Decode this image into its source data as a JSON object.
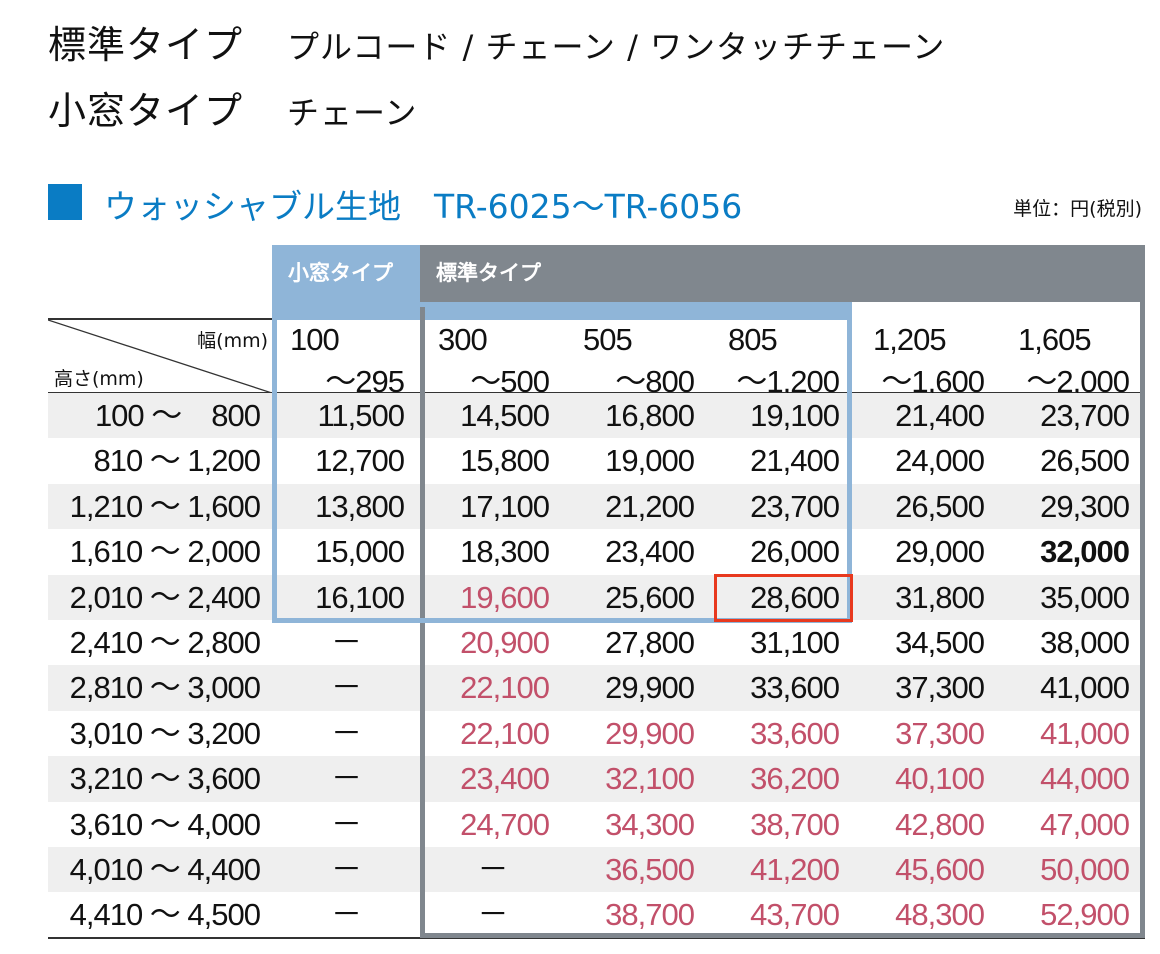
{
  "title_lines": [
    {
      "type": "標準タイプ",
      "operation": "プルコード / チェーン / ワンタッチチェーン"
    },
    {
      "type": "小窓タイプ",
      "operation": "チェーン"
    }
  ],
  "section": {
    "heading": "ウォッシャブル生地　TR-6025～TR-6056",
    "unit": "単位：円(税別)"
  },
  "colors": {
    "accent_blue": "#0a7cc4",
    "small_window_blue": "#8fb5d8",
    "standard_gray": "#80878e",
    "red_price": "#c2506a",
    "highlight_red": "#e8391e",
    "row_stripe": "#efefef"
  },
  "table": {
    "group_headers": {
      "small_window": "小窓タイプ",
      "standard": "標準タイプ"
    },
    "corner": {
      "width_label": "幅(mm)",
      "height_label": "高さ(mm)"
    },
    "width_columns": [
      {
        "from": "100",
        "to": "～295"
      },
      {
        "from": "300",
        "to": "～500"
      },
      {
        "from": "505",
        "to": "～800"
      },
      {
        "from": "805",
        "to": "～1,200"
      },
      {
        "from": "1,205",
        "to": "～1,600"
      },
      {
        "from": "1,605",
        "to": "～2,000"
      }
    ],
    "rows": [
      {
        "height": "100 ～　800",
        "values": [
          "11,500",
          "14,500",
          "16,800",
          "19,100",
          "21,400",
          "23,700"
        ],
        "red": []
      },
      {
        "height": "810 ～ 1,200",
        "values": [
          "12,700",
          "15,800",
          "19,000",
          "21,400",
          "24,000",
          "26,500"
        ],
        "red": []
      },
      {
        "height": "1,210 ～ 1,600",
        "values": [
          "13,800",
          "17,100",
          "21,200",
          "23,700",
          "26,500",
          "29,300"
        ],
        "red": []
      },
      {
        "height": "1,610 ～ 2,000",
        "values": [
          "15,000",
          "18,300",
          "23,400",
          "26,000",
          "29,000",
          "32,000"
        ],
        "red": [],
        "bold": [
          5
        ]
      },
      {
        "height": "2,010 ～ 2,400",
        "values": [
          "16,100",
          "19,600",
          "25,600",
          "28,600",
          "31,800",
          "35,000"
        ],
        "red": [
          1
        ],
        "highlighted": [
          3
        ]
      },
      {
        "height": "2,410 ～ 2,800",
        "values": [
          "－",
          "20,900",
          "27,800",
          "31,100",
          "34,500",
          "38,000"
        ],
        "red": [
          1
        ]
      },
      {
        "height": "2,810 ～ 3,000",
        "values": [
          "－",
          "22,100",
          "29,900",
          "33,600",
          "37,300",
          "41,000"
        ],
        "red": [
          1
        ]
      },
      {
        "height": "3,010 ～ 3,200",
        "values": [
          "－",
          "22,100",
          "29,900",
          "33,600",
          "37,300",
          "41,000"
        ],
        "red": [
          1,
          2,
          3,
          4,
          5
        ]
      },
      {
        "height": "3,210 ～ 3,600",
        "values": [
          "－",
          "23,400",
          "32,100",
          "36,200",
          "40,100",
          "44,000"
        ],
        "red": [
          1,
          2,
          3,
          4,
          5
        ]
      },
      {
        "height": "3,610 ～ 4,000",
        "values": [
          "－",
          "24,700",
          "34,300",
          "38,700",
          "42,800",
          "47,000"
        ],
        "red": [
          1,
          2,
          3,
          4,
          5
        ]
      },
      {
        "height": "4,010 ～ 4,400",
        "values": [
          "－",
          "－",
          "36,500",
          "41,200",
          "45,600",
          "50,000"
        ],
        "red": [
          2,
          3,
          4,
          5
        ]
      },
      {
        "height": "4,410 ～ 4,500",
        "values": [
          "－",
          "－",
          "38,700",
          "43,700",
          "48,300",
          "52,900"
        ],
        "red": [
          2,
          3,
          4,
          5
        ]
      }
    ]
  }
}
